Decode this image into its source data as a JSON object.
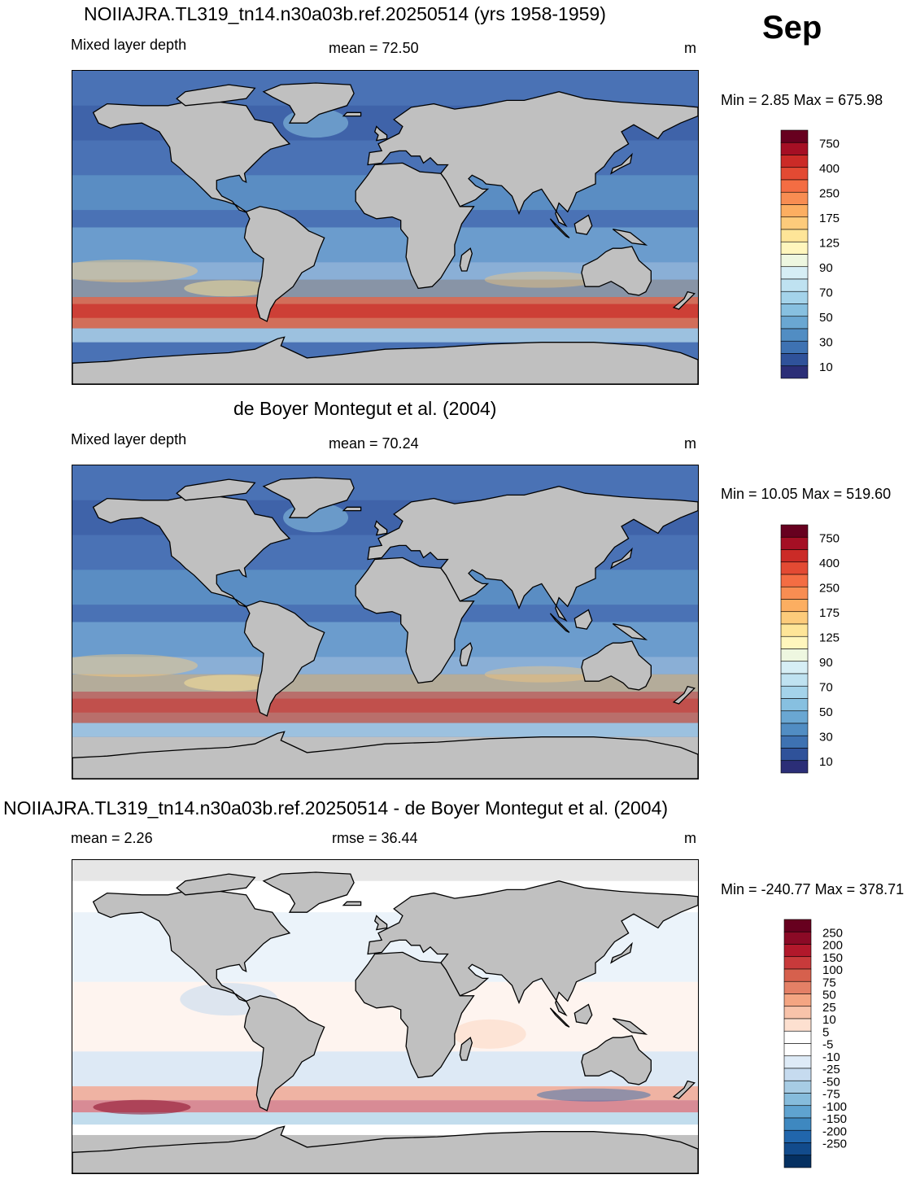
{
  "month": "Sep",
  "units": "m",
  "panels": [
    {
      "title": "NOIIAJRA.TL319_tn14.n30a03b.ref.20250514 (yrs 1958-1959)",
      "left_label": "Mixed layer depth",
      "center_label": "mean =  72.50",
      "right_label": "m",
      "minmax": "Min =   2.85 Max = 675.98"
    },
    {
      "title": "de Boyer Montegut et al. (2004)",
      "left_label": "Mixed layer depth",
      "center_label": "mean =  70.24",
      "right_label": "m",
      "minmax": "Min =  10.05 Max = 519.60"
    },
    {
      "title": "NOIIAJRA.TL319_tn14.n30a03b.ref.20250514 - de Boyer Montegut et al. (2004)",
      "left_label": "mean =   2.26",
      "center_label": "rmse =  36.44",
      "right_label": "m",
      "minmax": "Min = -240.77 Max = 378.71"
    }
  ],
  "colorbars": {
    "mld": {
      "labels": [
        "750",
        "400",
        "250",
        "175",
        "125",
        "90",
        "70",
        "50",
        "30",
        "10"
      ],
      "colors": [
        "#67001f",
        "#a50f24",
        "#cb2b27",
        "#e34a33",
        "#f46d43",
        "#f88d52",
        "#fcae61",
        "#fdcb7b",
        "#fee598",
        "#fff6bd",
        "#eef7e0",
        "#d6eef5",
        "#bfe2f1",
        "#a4d3ea",
        "#87c0e0",
        "#6aa7d2",
        "#518dc3",
        "#3e72b2",
        "#2f529a",
        "#2b2e77"
      ]
    },
    "diff": {
      "labels": [
        "250",
        "200",
        "150",
        "100",
        "75",
        "50",
        "25",
        "10",
        "5",
        "-5",
        "-10",
        "-25",
        "-50",
        "-75",
        "-100",
        "-150",
        "-200",
        "-250"
      ],
      "colors": [
        "#67001f",
        "#8b0a26",
        "#b2182b",
        "#c83a3b",
        "#d6604d",
        "#e48066",
        "#f4a582",
        "#f8c3aa",
        "#fde0d0",
        "#ffffff",
        "#ffffff",
        "#deebf7",
        "#c6dbef",
        "#a7cce4",
        "#86bcdc",
        "#5fa3d0",
        "#3e88c0",
        "#2166ac",
        "#124b8c",
        "#053061"
      ]
    }
  },
  "map_colors": {
    "land": "#c0c0c0",
    "coast": "#000000"
  }
}
